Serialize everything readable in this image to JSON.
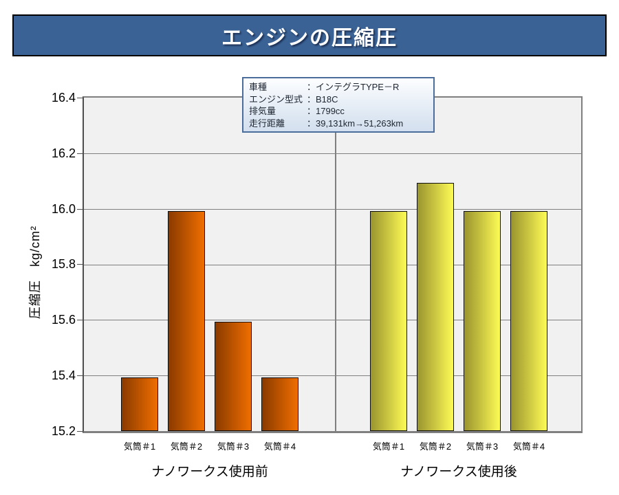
{
  "title": "エンジンの圧縮圧",
  "info_box": {
    "rows": [
      {
        "label": "車種",
        "value": "：インテグラTYPE－R"
      },
      {
        "label": "エンジン型式",
        "value": "：B18C"
      },
      {
        "label": "排気量",
        "value": "：1799cc"
      },
      {
        "label": "走行距離",
        "value": "：39,131km→51,263km"
      }
    ]
  },
  "chart_data": {
    "type": "bar",
    "title": "エンジンの圧縮圧",
    "xlabel": "",
    "ylabel": "圧縮圧　kg/cm²",
    "ylim": [
      15.2,
      16.4
    ],
    "ytick_step": 0.2,
    "ytick_labels": [
      "15.2",
      "15.4",
      "15.6",
      "15.8",
      "16.0",
      "16.2",
      "16.4"
    ],
    "grid": true,
    "legend_position": "none",
    "categories": [
      "気筒＃1",
      "気筒＃2",
      "気筒＃3",
      "気筒＃4"
    ],
    "series": [
      {
        "name": "ナノワークス使用前",
        "values": [
          15.4,
          16.0,
          15.6,
          15.4
        ]
      },
      {
        "name": "ナノワークス使用後",
        "values": [
          16.0,
          16.1,
          16.0,
          16.0
        ]
      }
    ]
  },
  "colors": {
    "title_bg": "#3a6294",
    "title_text": "#ffffff",
    "plot_bg": "#f1f1f1",
    "gridline": "#7f7f7f",
    "bar_border": "#0d0d0d",
    "before_bar_dark": "#8a3a00",
    "before_bar_light": "#f06e00",
    "after_bar_dark": "#9a942e",
    "after_bar_light": "#fdfb55",
    "infobox_bg": "#dce6f2",
    "infobox_border": "#4a6d9b"
  }
}
